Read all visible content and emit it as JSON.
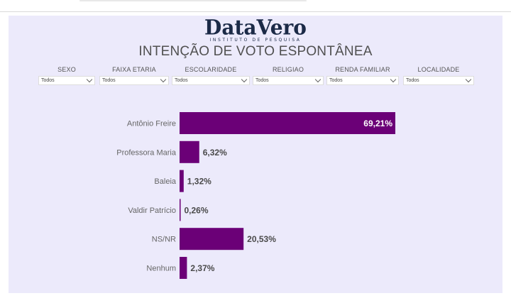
{
  "logo": {
    "name": "DataVero",
    "tagline": "INSTITUTO DE PESQUISA"
  },
  "filters": [
    {
      "label": "SEXO",
      "value": "Todos"
    },
    {
      "label": "FAIXA ETARIA",
      "value": "Todos"
    },
    {
      "label": "ESCOLARIDADE",
      "value": "Todos"
    },
    {
      "label": "RELIGIAO",
      "value": "Todos"
    },
    {
      "label": "RENDA FAMILIAR",
      "value": "Todos"
    },
    {
      "label": "LOCALIDADE",
      "value": "Todos"
    }
  ],
  "colors": {
    "bar": "#6b0077",
    "panel": "#eceafb",
    "value_inside": "#ffffff",
    "value_outside": "#4a4a4a"
  },
  "chart_data": {
    "type": "bar",
    "orientation": "horizontal",
    "title": "INTENÇÃO DE VOTO ESPONTÂNEA",
    "categories": [
      "Antônio Freire",
      "Professora Maria",
      "Baleia",
      "Valdir Patrício",
      "NS/NR",
      "Nenhum"
    ],
    "values": [
      69.21,
      6.32,
      1.32,
      0.26,
      20.53,
      2.37
    ],
    "value_labels": [
      "69,21%",
      "6,32%",
      "1,32%",
      "0,26%",
      "20,53%",
      "2,37%"
    ],
    "xlim": [
      0,
      69.21
    ],
    "grid": false,
    "legend": "none"
  }
}
